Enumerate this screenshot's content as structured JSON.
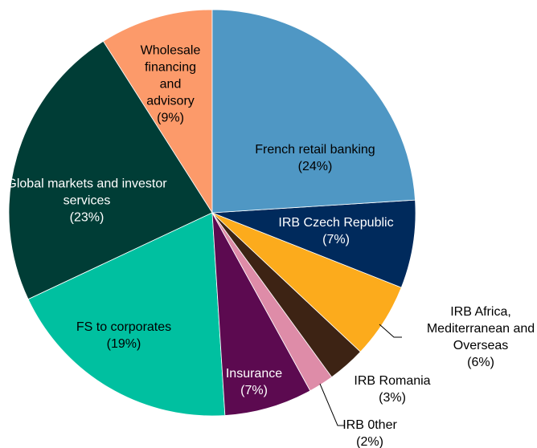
{
  "chart_data": {
    "type": "pie",
    "categories": [
      "French retail banking",
      "IRB Czech Republic",
      "IRB Africa, Mediterranean and Overseas",
      "IRB Romania",
      "IRB 0ther",
      "Insurance",
      "FS to corporates",
      "Global markets and investor services",
      "Wholesale financing and advisory"
    ],
    "values": [
      24,
      7,
      6,
      3,
      2,
      7,
      19,
      23,
      9
    ],
    "value_labels": [
      "(24%)",
      "(7%)",
      "(6%)",
      "(3%)",
      "(2%)",
      "(7%)",
      "(19%)",
      "(23%)",
      "(9%)"
    ],
    "colors": [
      "#4f97c4",
      "#002a5c",
      "#fcab1c",
      "#3d2314",
      "#de8ca8",
      "#5c0a50",
      "#00c0a0",
      "#003d36",
      "#fc9a6a"
    ]
  }
}
